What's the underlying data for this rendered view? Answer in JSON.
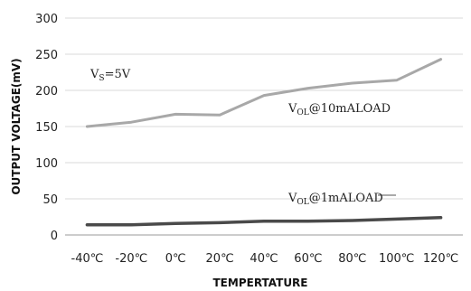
{
  "chart_data": {
    "type": "line",
    "categories": [
      "-40℃",
      "-20℃",
      "0℃",
      "20℃",
      "40℃",
      "60℃",
      "80℃",
      "100℃",
      "120℃"
    ],
    "series": [
      {
        "name": "V_OL@10mALOAD",
        "values": [
          150,
          156,
          167,
          166,
          193,
          203,
          210,
          214,
          243
        ],
        "color": "#a8a8a8"
      },
      {
        "name": "V_OL@1mALOAD",
        "values": [
          14,
          14,
          16,
          17,
          19,
          19,
          20,
          22,
          24
        ],
        "color": "#4a4a4a"
      }
    ],
    "xlabel": "TEMPERTATURE",
    "ylabel": "OUTPUT VOLTAGE(mV)",
    "ylim": [
      0,
      300
    ],
    "yticks": [
      0,
      50,
      100,
      150,
      200,
      250,
      300
    ],
    "grid": true,
    "annotations": {
      "vs": {
        "main": "V",
        "sub": "S",
        "rest": "=5V"
      },
      "hi": {
        "main": "V",
        "sub": "OL",
        "rest": "@10mALOAD"
      },
      "lo": {
        "main": "V",
        "sub": "OL",
        "rest": "@1mALOAD"
      }
    }
  }
}
